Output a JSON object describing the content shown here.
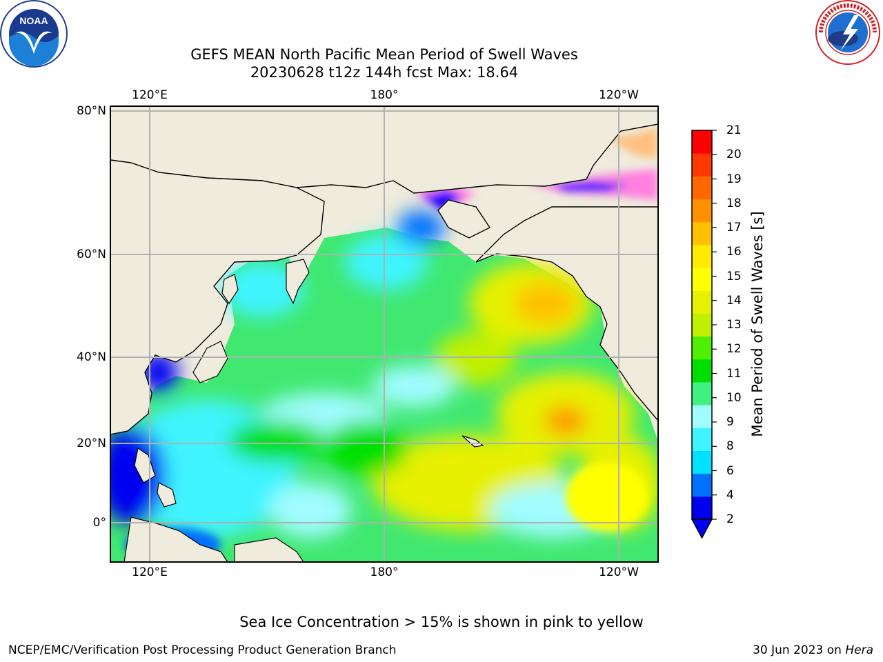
{
  "title": {
    "line1": "GEFS MEAN North Pacific Mean Period of Swell Waves",
    "line2": "20230628 t12z 144h fcst   Max: 18.64"
  },
  "logos": {
    "left": {
      "name": "NOAA",
      "text": "NOAA",
      "ring_text": "NATIONAL OCEANIC AND ATMOSPHERIC ADMINISTRATION · U.S. DEPARTMENT OF COMMERCE"
    },
    "right": {
      "name": "National Weather Service",
      "ring_text": "NATIONAL WEATHER SERVICE"
    }
  },
  "map": {
    "projection": "cylindrical",
    "lon_labels": [
      "120°E",
      "180°",
      "120°W"
    ],
    "lat_labels": [
      "80°N",
      "60°N",
      "40°N",
      "20°N",
      "0°"
    ],
    "land_color": "#efecdd",
    "coast_color": "#000000",
    "grid_color": "#b0b0b0"
  },
  "colorbar": {
    "label": "Mean Period of Swell Waves [s]",
    "ticks": [
      "21",
      "20",
      "19",
      "18",
      "17",
      "16",
      "15",
      "14",
      "13",
      "12",
      "11",
      "10",
      "9",
      "8",
      "6",
      "4",
      "2"
    ],
    "colors_low_to_high": [
      "#0000f0",
      "#0070ff",
      "#00e0ff",
      "#40f4ff",
      "#a0fcff",
      "#40f080",
      "#00e000",
      "#50ee00",
      "#c0f000",
      "#e6f000",
      "#ffff00",
      "#ffea00",
      "#ffc000",
      "#ff9000",
      "#ff6800",
      "#ff3800",
      "#ff0000"
    ],
    "extend": "min"
  },
  "note": "Sea Ice Concentration > 15% is shown in pink to yellow",
  "footer": {
    "left": "NCEP/EMC/Verification Post Processing Product Generation Branch",
    "date": "30 Jun 2023 on ",
    "machine": "Hera"
  }
}
